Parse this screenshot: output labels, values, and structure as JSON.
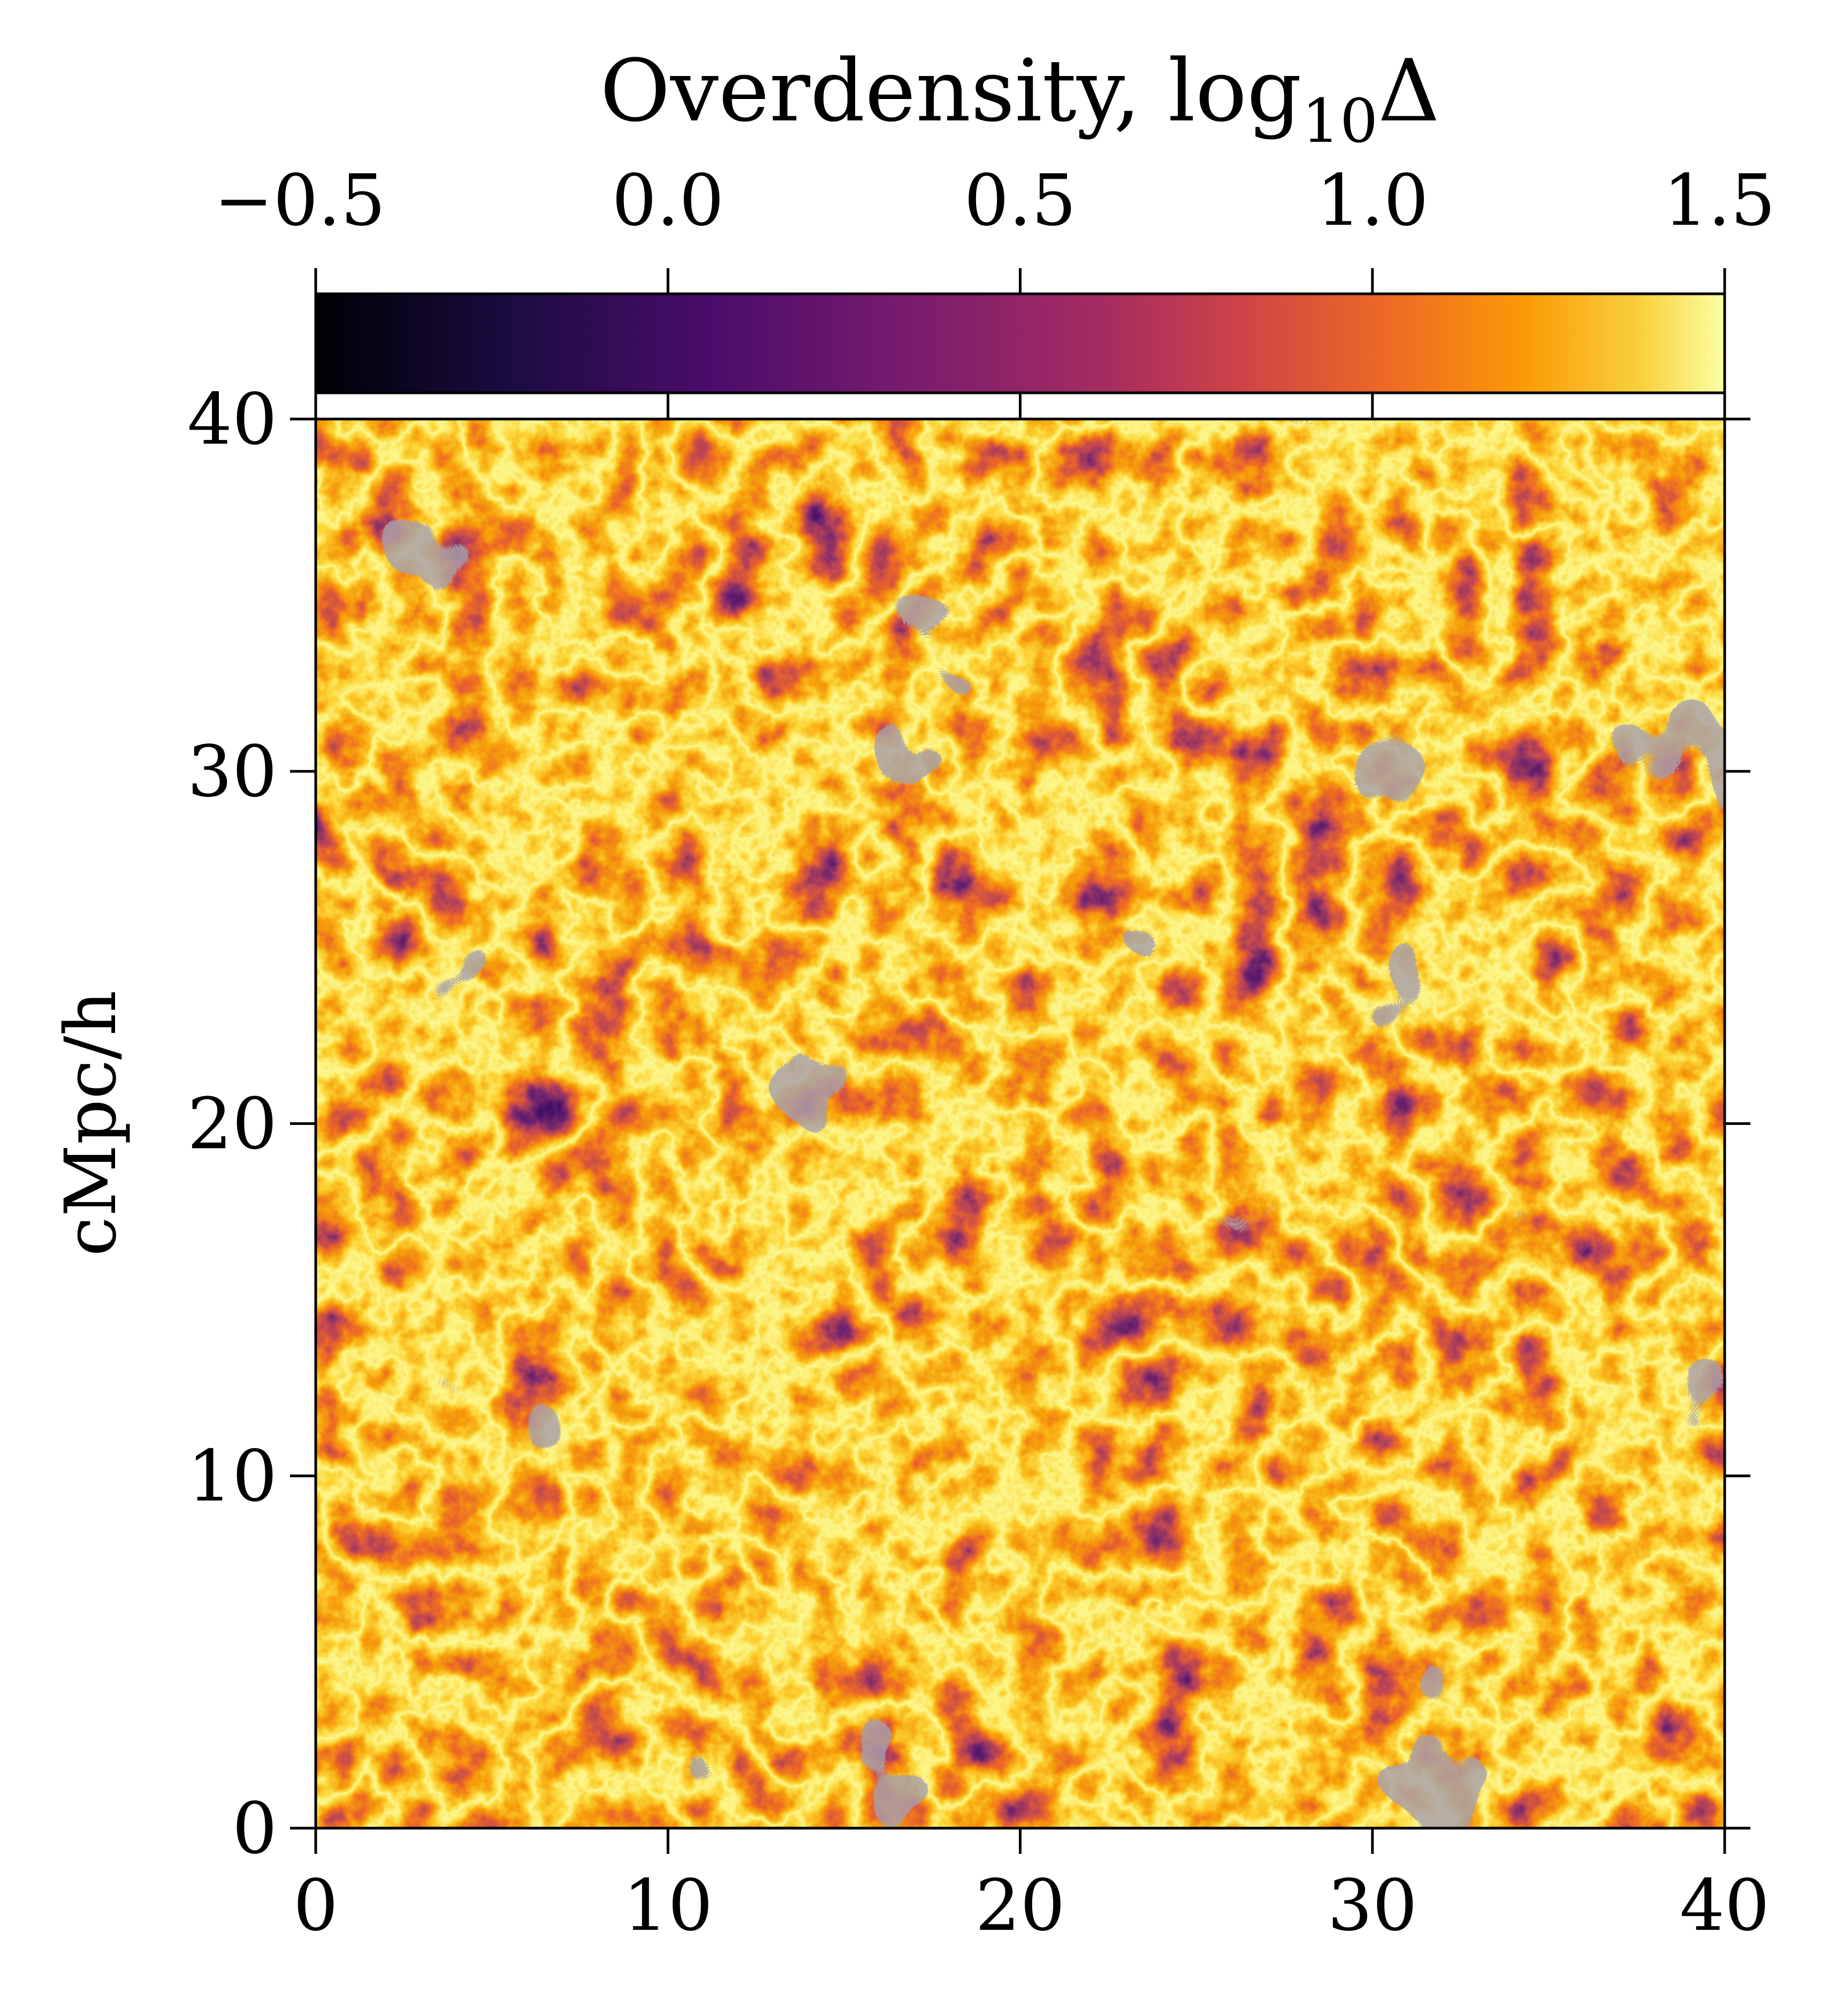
{
  "chart_data": {
    "type": "heatmap",
    "title": "",
    "xlabel": "",
    "ylabel": "cMpc/h",
    "xlim": [
      0,
      40
    ],
    "ylim": [
      0,
      40
    ],
    "x_ticks": [
      "0",
      "10",
      "20",
      "30",
      "40"
    ],
    "y_ticks": [
      "0",
      "10",
      "20",
      "30",
      "40"
    ],
    "x_tick_values": [
      0,
      10,
      20,
      30,
      40
    ],
    "y_tick_values": [
      0,
      10,
      20,
      30,
      40
    ],
    "grid": false,
    "colormap": "inferno",
    "colorbar": {
      "label_main": "Overdensity, log",
      "label_sub": "10",
      "label_symbol": "Δ",
      "range": [
        -0.5,
        1.5
      ],
      "ticks": [
        "−0.5",
        "0.0",
        "0.5",
        "1.0",
        "1.5"
      ],
      "tick_values": [
        -0.5,
        0.0,
        0.5,
        1.0,
        1.5
      ],
      "placement": "top"
    },
    "ionized_overlay_color": "#a8a0ac",
    "colors": [
      "#000004",
      "#320a5e",
      "#781c6d",
      "#bc3754",
      "#ed6925",
      "#fbb61a",
      "#fcffa4"
    ]
  }
}
